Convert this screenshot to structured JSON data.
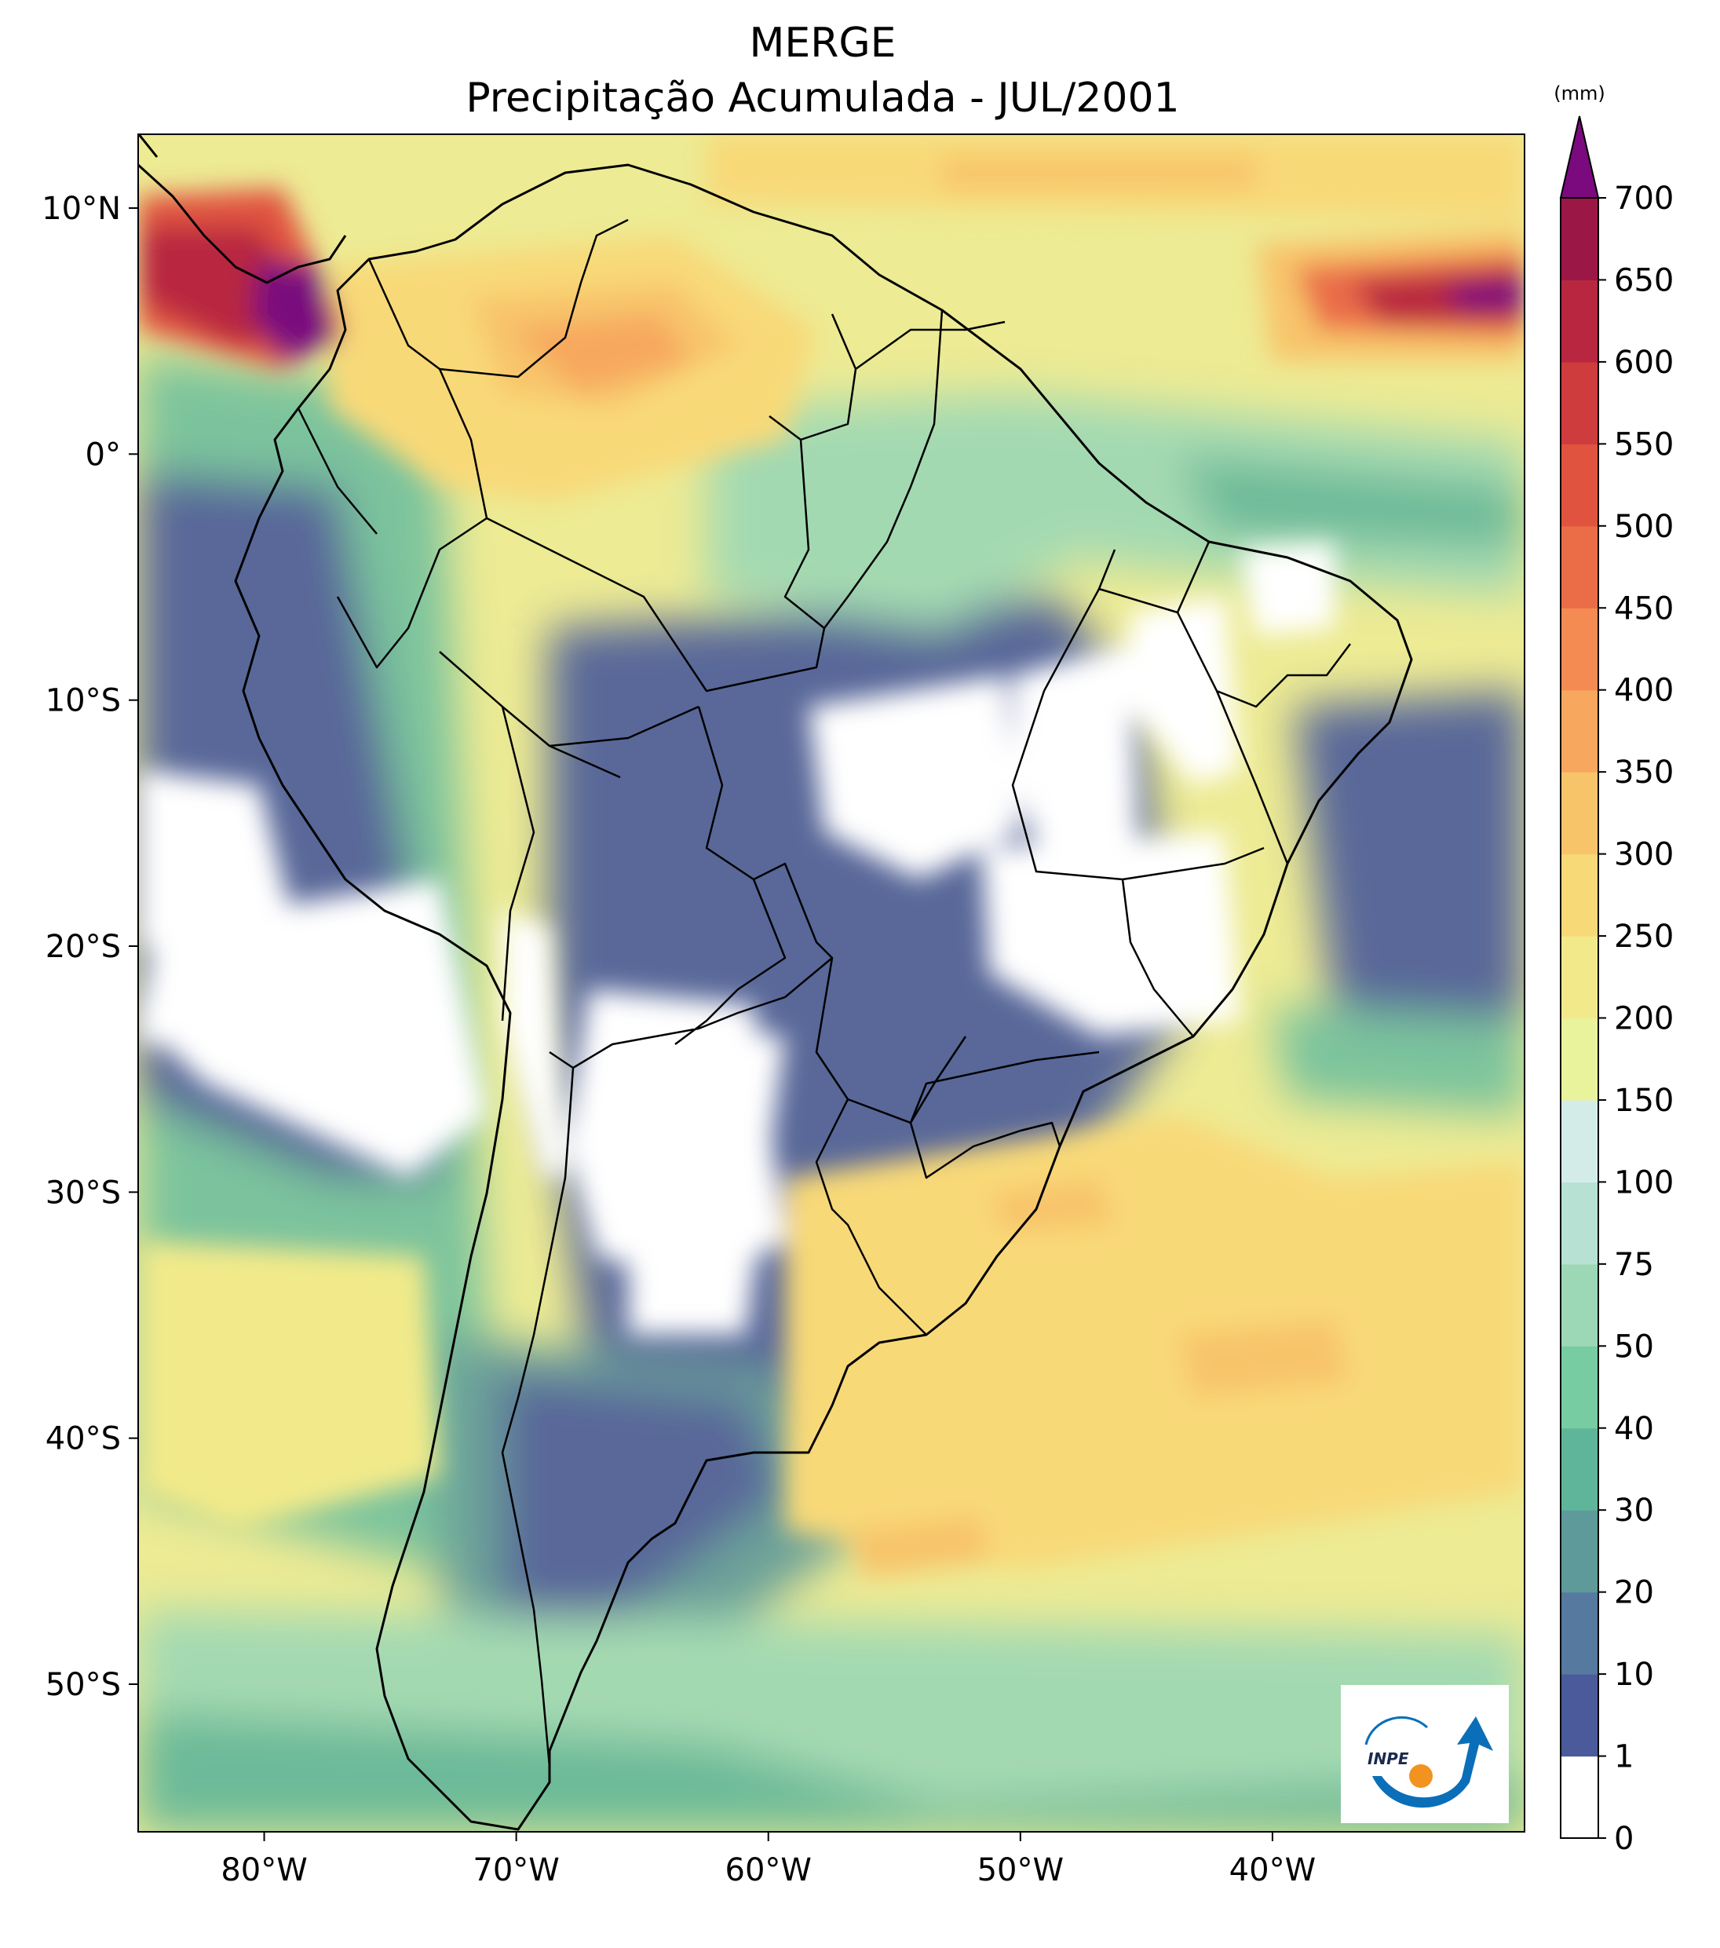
{
  "title": {
    "line1": "MERGE",
    "line2": "Precipitação Acumulada - JUL/2001"
  },
  "map": {
    "lon_range": [
      -85,
      -30
    ],
    "lat_range": [
      -56,
      13
    ],
    "lon_ticks": [
      {
        "value": -80,
        "label": "80°W"
      },
      {
        "value": -70,
        "label": "70°W"
      },
      {
        "value": -60,
        "label": "60°W"
      },
      {
        "value": -50,
        "label": "50°W"
      },
      {
        "value": -40,
        "label": "40°W"
      }
    ],
    "lat_ticks": [
      {
        "value": 10,
        "label": "10°N"
      },
      {
        "value": 0,
        "label": "0°"
      },
      {
        "value": -10,
        "label": "10°S"
      },
      {
        "value": -20,
        "label": "20°S"
      },
      {
        "value": -30,
        "label": "30°S"
      },
      {
        "value": -40,
        "label": "40°S"
      },
      {
        "value": -50,
        "label": "50°S"
      }
    ]
  },
  "colorbar": {
    "unit": "(mm)",
    "levels": [
      "0",
      "1",
      "10",
      "20",
      "30",
      "40",
      "50",
      "75",
      "100",
      "150",
      "200",
      "250",
      "300",
      "350",
      "400",
      "450",
      "500",
      "550",
      "600",
      "650",
      "700"
    ],
    "colors": [
      "#ffffff",
      "#4a5a9a",
      "#55799f",
      "#5e9a9a",
      "#5fb59a",
      "#77cca2",
      "#9cd8b5",
      "#b7e1d2",
      "#d4ece8",
      "#e9f39c",
      "#f2ea8a",
      "#f8d978",
      "#f8c46a",
      "#f7a85e",
      "#f38b52",
      "#ea6d48",
      "#e0533f",
      "#cf3c3e",
      "#b8273f",
      "#9b1746"
    ],
    "extend_color": "#7a0a7e"
  },
  "logo": {
    "text": "INPE",
    "colors": {
      "blue": "#0a6fb8",
      "orange": "#f2921f"
    }
  }
}
